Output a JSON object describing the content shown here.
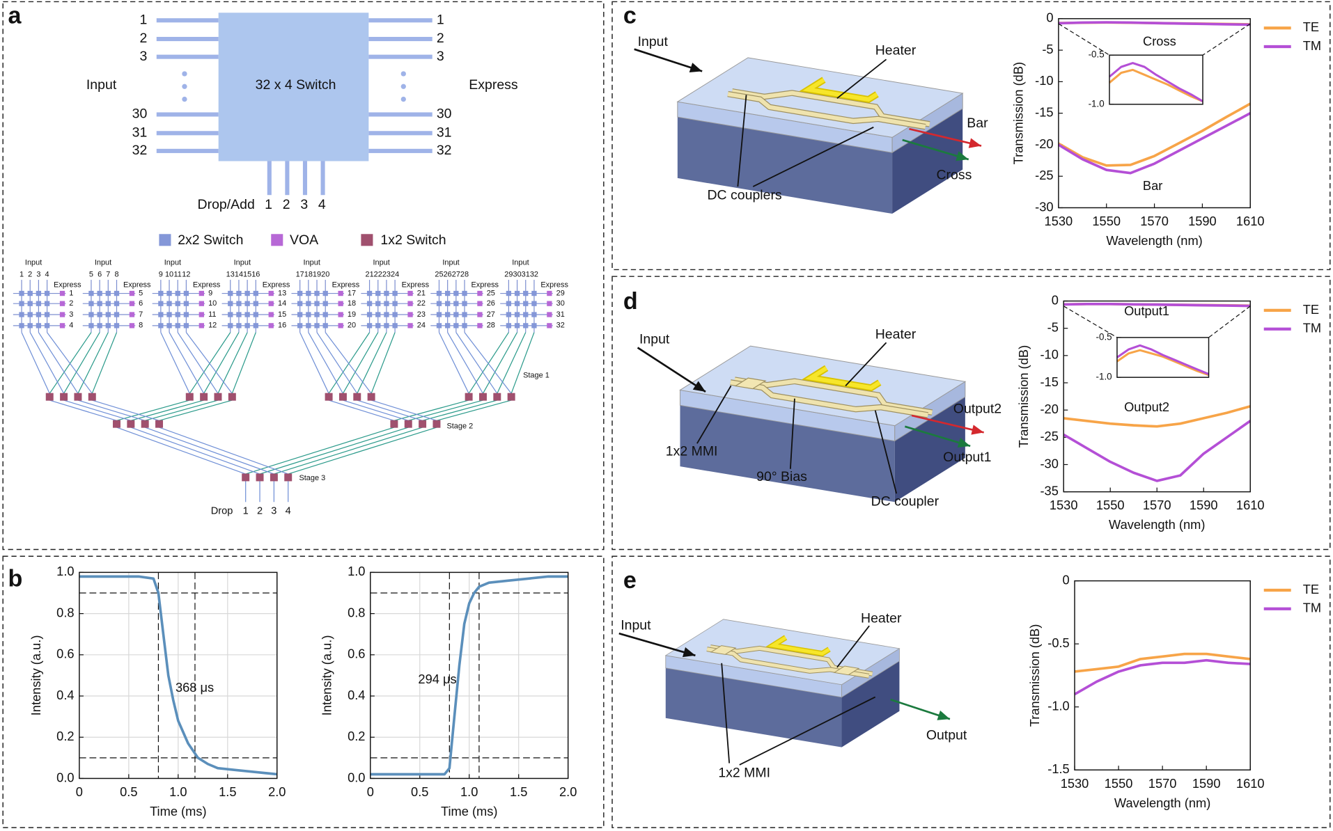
{
  "letters": [
    "a",
    "b",
    "c",
    "d",
    "e"
  ],
  "switch": {
    "label": "32 x 4 Switch",
    "input_label": "Input",
    "express_label": "Express",
    "inputs": [
      1,
      2,
      3,
      30,
      31,
      32
    ],
    "express": [
      1,
      2,
      3,
      30,
      31,
      32
    ],
    "drop_label": "Drop/Add",
    "drops": [
      1,
      2,
      3,
      4
    ]
  },
  "legend": [
    "2x2 Switch",
    "VOA",
    "1x2 Switch"
  ],
  "schematic": {
    "groups": [
      {
        "input_label": "Input",
        "inputs": [
          1,
          2,
          3,
          4
        ],
        "express_label": "Express",
        "express": [
          1,
          2,
          3,
          4
        ]
      },
      {
        "input_label": "Input",
        "inputs": [
          5,
          6,
          7,
          8
        ],
        "express_label": "Express",
        "express": [
          5,
          6,
          7,
          8
        ]
      },
      {
        "input_label": "Input",
        "inputs": [
          9,
          10,
          11,
          12
        ],
        "express_label": "Express",
        "express": [
          9,
          10,
          11,
          12
        ]
      },
      {
        "input_label": "Input",
        "inputs": [
          13,
          14,
          15,
          16
        ],
        "express_label": "Express",
        "express": [
          13,
          14,
          15,
          16
        ]
      },
      {
        "input_label": "Input",
        "inputs": [
          17,
          18,
          19,
          20
        ],
        "express_label": "Express",
        "express": [
          17,
          18,
          19,
          20
        ]
      },
      {
        "input_label": "Input",
        "inputs": [
          21,
          22,
          23,
          24
        ],
        "express_label": "Express",
        "express": [
          21,
          22,
          23,
          24
        ]
      },
      {
        "input_label": "Input",
        "inputs": [
          25,
          26,
          27,
          28
        ],
        "express_label": "Express",
        "express": [
          25,
          26,
          27,
          28
        ]
      },
      {
        "input_label": "Input",
        "inputs": [
          29,
          30,
          31,
          32
        ],
        "express_label": "Express",
        "express": [
          29,
          30,
          31,
          32
        ]
      }
    ],
    "stages": [
      "Stage 1",
      "Stage 2",
      "Stage 3"
    ],
    "drop_label": "Drop",
    "drops": [
      1,
      2,
      3,
      4
    ]
  },
  "devices": {
    "c": [
      "Input",
      "Heater",
      "Bar",
      "Cross",
      "DC couplers"
    ],
    "d": [
      "Input",
      "Heater",
      "Output2",
      "Output1",
      "1x2 MMI",
      "90° Bias",
      "DC coupler"
    ],
    "e": [
      "Input",
      "Heater",
      "Output",
      "1x2 MMI"
    ]
  },
  "chart_data": [
    {
      "type": "line",
      "xlabel": "Time (ms)",
      "ylabel": "Intensity (a.u.)",
      "grid": true,
      "x": [
        0,
        0.2,
        0.4,
        0.6,
        0.75,
        0.8,
        0.85,
        0.9,
        0.95,
        1.0,
        1.1,
        1.2,
        1.3,
        1.4,
        1.6,
        1.8,
        2.0
      ],
      "series": [
        {
          "color": "#5b8fbb",
          "values": [
            0.98,
            0.98,
            0.98,
            0.98,
            0.97,
            0.9,
            0.7,
            0.5,
            0.38,
            0.28,
            0.17,
            0.1,
            0.07,
            0.05,
            0.04,
            0.03,
            0.02
          ]
        }
      ],
      "xlim": [
        0,
        2
      ],
      "ylim": [
        0,
        1
      ],
      "xticks": [
        0,
        0.5,
        {
          "value": 1,
          "label": "1.0"
        },
        1.5,
        {
          "value": 2,
          "label": "2.0"
        }
      ],
      "yticks": [
        {
          "value": 0,
          "label": "0.0"
        },
        0.2,
        0.4,
        0.6,
        0.8,
        {
          "value": 1,
          "label": "1.0"
        }
      ],
      "ref_x": [
        0.8,
        1.17
      ],
      "ref_y": [
        0.1,
        0.9
      ],
      "annotations": [
        "368 μs"
      ]
    },
    {
      "type": "line",
      "xlabel": "Time (ms)",
      "ylabel": "Intensity (a.u.)",
      "grid": true,
      "x": [
        0,
        0.2,
        0.4,
        0.6,
        0.75,
        0.8,
        0.85,
        0.9,
        0.95,
        1.0,
        1.05,
        1.1,
        1.2,
        1.4,
        1.6,
        1.8,
        2.0
      ],
      "series": [
        {
          "color": "#5b8fbb",
          "values": [
            0.02,
            0.02,
            0.02,
            0.02,
            0.02,
            0.05,
            0.3,
            0.55,
            0.75,
            0.85,
            0.9,
            0.93,
            0.95,
            0.96,
            0.97,
            0.98,
            0.98
          ]
        }
      ],
      "xlim": [
        0,
        2
      ],
      "ylim": [
        0,
        1
      ],
      "xticks": [
        0,
        0.5,
        {
          "value": 1,
          "label": "1.0"
        },
        1.5,
        {
          "value": 2,
          "label": "2.0"
        }
      ],
      "yticks": [
        {
          "value": 0,
          "label": "0.0"
        },
        0.2,
        0.4,
        0.6,
        0.8,
        {
          "value": 1,
          "label": "1.0"
        }
      ],
      "ref_x": [
        0.8,
        1.1
      ],
      "ref_y": [
        0.1,
        0.9
      ],
      "annotations": [
        "294 μs"
      ]
    },
    {
      "type": "line",
      "xlabel": "Wavelength (nm)",
      "ylabel": "Transmission (dB)",
      "legend": "right",
      "x": [
        1530,
        1540,
        1550,
        1560,
        1570,
        1580,
        1590,
        1600,
        1610
      ],
      "series": [
        {
          "name": "TE",
          "color": "#f7a448",
          "values": [
            -19.8,
            -22,
            -23.3,
            -23.2,
            -21.8,
            -19.8,
            -17.8,
            -15.6,
            -13.5
          ],
          "values2": [
            -0.7,
            -0.65,
            -0.6,
            -0.65,
            -0.7,
            -0.75,
            -0.8,
            -0.85,
            -0.9
          ]
        },
        {
          "name": "TM",
          "color": "#b44fd6",
          "values": [
            -20,
            -22.3,
            -24,
            -24.5,
            -23,
            -21,
            -19,
            -17,
            -15
          ],
          "values2": [
            -0.72,
            -0.62,
            -0.58,
            -0.62,
            -0.7,
            -0.77,
            -0.84,
            -0.9,
            -0.95
          ]
        }
      ],
      "xlim": [
        1530,
        1610
      ],
      "ylim": [
        -30,
        0
      ],
      "xticks": [
        1530,
        1550,
        1570,
        1590,
        1610
      ],
      "yticks": [
        0,
        -5,
        -10,
        -15,
        -20,
        -25,
        -30
      ],
      "annotations": [
        "Cross",
        "Bar"
      ]
    },
    {
      "type": "line",
      "x": [
        1530,
        1540,
        1550,
        1560,
        1570,
        1580,
        1590,
        1600,
        1610
      ],
      "series": [
        {
          "color": "#f7a448",
          "values": [
            -0.78,
            -0.68,
            -0.65,
            -0.7,
            -0.75,
            -0.8,
            -0.86,
            -0.92,
            -0.97
          ]
        },
        {
          "color": "#b44fd6",
          "values": [
            -0.72,
            -0.62,
            -0.58,
            -0.62,
            -0.7,
            -0.77,
            -0.84,
            -0.9,
            -0.97
          ]
        }
      ],
      "xlim": [
        1530,
        1610
      ],
      "ylim": [
        -1,
        -0.5
      ],
      "yticks": [
        {
          "value": -1,
          "label": "-1.0"
        },
        -0.5
      ]
    },
    {
      "type": "line",
      "xlabel": "Wavelength (nm)",
      "ylabel": "Transmission (dB)",
      "legend": "right",
      "x": [
        1530,
        1540,
        1550,
        1560,
        1570,
        1580,
        1590,
        1600,
        1610
      ],
      "series": [
        {
          "name": "TE",
          "color": "#f7a448",
          "values": [
            -21.5,
            -22,
            -22.5,
            -22.8,
            -23,
            -22.5,
            -21.5,
            -20.5,
            -19.3
          ],
          "values2": [
            -0.6,
            -0.55,
            -0.55,
            -0.6,
            -0.65,
            -0.7,
            -0.75,
            -0.8,
            -0.85
          ]
        },
        {
          "name": "TM",
          "color": "#b44fd6",
          "values": [
            -24.5,
            -27,
            -29.5,
            -31.5,
            -33,
            -32,
            -28,
            -25,
            -22
          ],
          "values2": [
            -0.62,
            -0.55,
            -0.55,
            -0.6,
            -0.66,
            -0.72,
            -0.78,
            -0.84,
            -0.9
          ]
        }
      ],
      "xlim": [
        1530,
        1610
      ],
      "ylim": [
        -35,
        0
      ],
      "xticks": [
        1530,
        1550,
        1570,
        1590,
        1610
      ],
      "yticks": [
        0,
        -5,
        -10,
        -15,
        -20,
        -25,
        -30,
        -35
      ],
      "annotations": [
        "Output1",
        "Output2"
      ]
    },
    {
      "type": "line",
      "x": [
        1530,
        1540,
        1550,
        1560,
        1570,
        1580,
        1590,
        1600,
        1610
      ],
      "series": [
        {
          "color": "#f7a448",
          "values": [
            -0.8,
            -0.7,
            -0.66,
            -0.7,
            -0.74,
            -0.8,
            -0.86,
            -0.92,
            -0.97
          ]
        },
        {
          "color": "#b44fd6",
          "values": [
            -0.75,
            -0.65,
            -0.6,
            -0.65,
            -0.72,
            -0.78,
            -0.84,
            -0.9,
            -0.96
          ]
        }
      ],
      "xlim": [
        1530,
        1610
      ],
      "ylim": [
        -1,
        -0.5
      ],
      "yticks": [
        {
          "value": -1,
          "label": "-1.0"
        },
        -0.5
      ]
    },
    {
      "type": "line",
      "xlabel": "Wavelength (nm)",
      "ylabel": "Transmission (dB)",
      "legend": "right",
      "x": [
        1530,
        1540,
        1550,
        1560,
        1570,
        1580,
        1590,
        1600,
        1610
      ],
      "series": [
        {
          "name": "TE",
          "color": "#f7a448",
          "values": [
            -0.72,
            -0.7,
            -0.68,
            -0.62,
            -0.6,
            -0.58,
            -0.58,
            -0.6,
            -0.62
          ]
        },
        {
          "name": "TM",
          "color": "#b44fd6",
          "values": [
            -0.9,
            -0.8,
            -0.72,
            -0.67,
            -0.65,
            -0.65,
            -0.63,
            -0.65,
            -0.66
          ]
        }
      ],
      "xlim": [
        1530,
        1610
      ],
      "ylim": [
        -1.5,
        0
      ],
      "xticks": [
        1530,
        1550,
        1570,
        1590,
        1610
      ],
      "yticks": [
        0,
        -0.5,
        {
          "value": -1,
          "label": "-1.0"
        },
        -1.5
      ]
    }
  ]
}
